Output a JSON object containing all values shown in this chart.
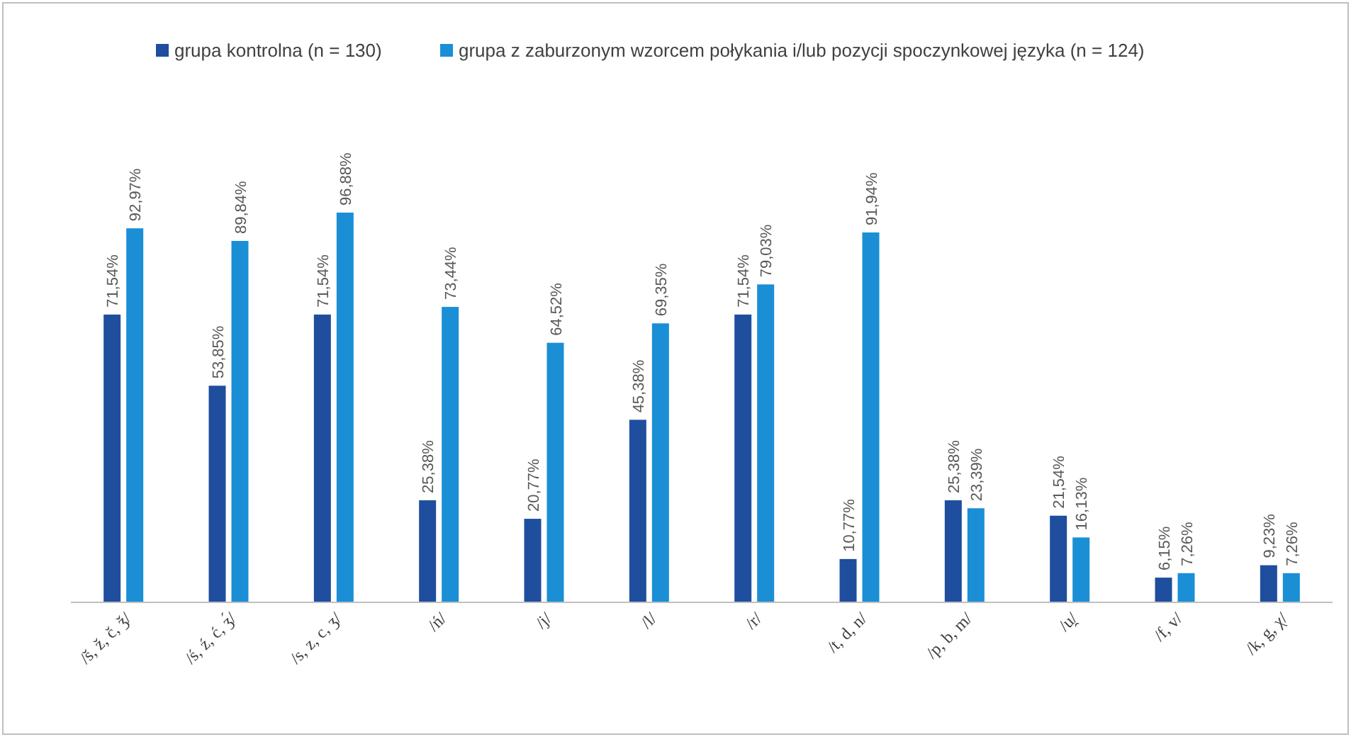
{
  "chart_data": {
    "type": "bar",
    "legend": "top",
    "categories": [
      "/š, ž, č, ǯ/",
      "/ś, ź, ć, ʒ́/",
      "/s, z, c, ʒ/",
      "/ń/",
      "/j/",
      "/l/",
      "/r/",
      "/t, d, n/",
      "/p, b, m/",
      "/u̯/",
      "/f, v/",
      "/k, g, χ/"
    ],
    "series": [
      {
        "name": "grupa kontrolna (n = 130)",
        "color": "#1f4e9e",
        "values": [
          71.54,
          53.85,
          71.54,
          25.38,
          20.77,
          45.38,
          71.54,
          10.77,
          25.38,
          21.54,
          6.15,
          9.23
        ],
        "value_labels": [
          "71,54%",
          "53,85%",
          "71,54%",
          "25,38%",
          "20,77%",
          "45,38%",
          "71,54%",
          "10,77%",
          "25,38%",
          "21,54%",
          "6,15%",
          "9,23%"
        ]
      },
      {
        "name": "grupa z zaburzonym wzorcem połykania i/lub pozycji spoczynkowej języka (n = 124)",
        "color": "#1a8fd6",
        "values": [
          92.97,
          89.84,
          96.88,
          73.44,
          64.52,
          69.35,
          79.03,
          91.94,
          23.39,
          16.13,
          7.26,
          7.26
        ],
        "value_labels": [
          "92,97%",
          "89,84%",
          "96,88%",
          "73,44%",
          "64,52%",
          "69,35%",
          "79,03%",
          "91,94%",
          "23,39%",
          "16,13%",
          "7,26%",
          "7,26%"
        ]
      }
    ]
  }
}
